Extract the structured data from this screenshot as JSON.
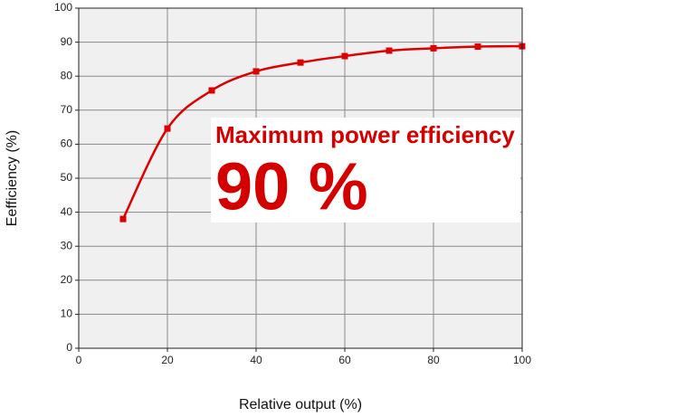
{
  "chart_data": {
    "type": "line",
    "x_label": "Relative output (%)",
    "y_label": "Eefficiency (%)",
    "x": [
      10,
      20,
      30,
      40,
      50,
      60,
      70,
      80,
      90,
      100
    ],
    "series": [
      {
        "name": "Efficiency",
        "color": "#dd0000",
        "values": [
          38.0,
          64.6,
          75.8,
          81.4,
          84.0,
          85.9,
          87.5,
          88.2,
          88.7,
          88.8
        ]
      }
    ],
    "xlim": [
      0,
      100
    ],
    "xticks": [
      0,
      20,
      40,
      60,
      80,
      100
    ],
    "ylim": [
      0,
      100
    ],
    "yticks": [
      0,
      10,
      20,
      30,
      40,
      50,
      60,
      70,
      80,
      90,
      100
    ],
    "grid": true,
    "annotations": [
      "Maximum power efficiency",
      "90 %"
    ]
  }
}
